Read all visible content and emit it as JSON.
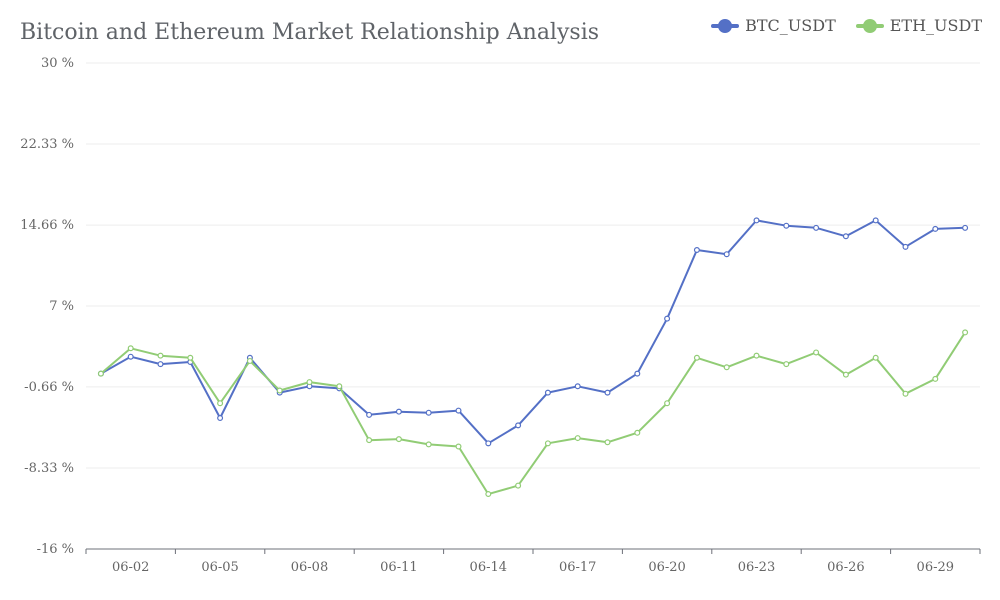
{
  "chart_data": {
    "type": "line",
    "title": "Bitcoin and Ethereum Market Relationship Analysis",
    "legend_position": "top-right",
    "grid": true,
    "ylim": [
      -16,
      30
    ],
    "y_ticks": [
      "30 %",
      "22.33 %",
      "14.66 %",
      "7 %",
      "-0.66 %",
      "-8.33 %",
      "-16 %"
    ],
    "y_tick_values": [
      30,
      22.33,
      14.66,
      7,
      -0.66,
      -8.33,
      -16
    ],
    "x": [
      "06-01",
      "06-02",
      "06-03",
      "06-04",
      "06-05",
      "06-06",
      "06-07",
      "06-08",
      "06-09",
      "06-10",
      "06-11",
      "06-12",
      "06-13",
      "06-14",
      "06-15",
      "06-16",
      "06-17",
      "06-18",
      "06-19",
      "06-20",
      "06-21",
      "06-22",
      "06-23",
      "06-24",
      "06-25",
      "06-26",
      "06-27",
      "06-28",
      "06-29",
      "06-30"
    ],
    "x_tick_labels": [
      "06-02",
      "06-05",
      "06-08",
      "06-11",
      "06-14",
      "06-17",
      "06-20",
      "06-23",
      "06-26",
      "06-29"
    ],
    "series": [
      {
        "name": "BTC_USDT",
        "color": "#5470c6",
        "values": [
          0.6,
          2.2,
          1.5,
          1.7,
          -3.6,
          2.1,
          -1.2,
          -0.6,
          -0.8,
          -3.3,
          -3.0,
          -3.1,
          -2.9,
          -6.0,
          -4.3,
          -1.2,
          -0.6,
          -1.2,
          0.6,
          5.8,
          12.3,
          11.9,
          15.1,
          14.6,
          14.4,
          13.6,
          15.1,
          12.6,
          14.3,
          14.4
        ]
      },
      {
        "name": "ETH_USDT",
        "color": "#91cc75",
        "values": [
          0.6,
          3.0,
          2.3,
          2.1,
          -2.2,
          1.8,
          -1.0,
          -0.2,
          -0.6,
          -5.7,
          -5.6,
          -6.1,
          -6.3,
          -10.8,
          -10.0,
          -6.0,
          -5.5,
          -5.9,
          -5.0,
          -2.2,
          2.1,
          1.2,
          2.3,
          1.5,
          2.6,
          0.5,
          2.1,
          -1.3,
          0.1,
          4.5
        ]
      }
    ]
  }
}
